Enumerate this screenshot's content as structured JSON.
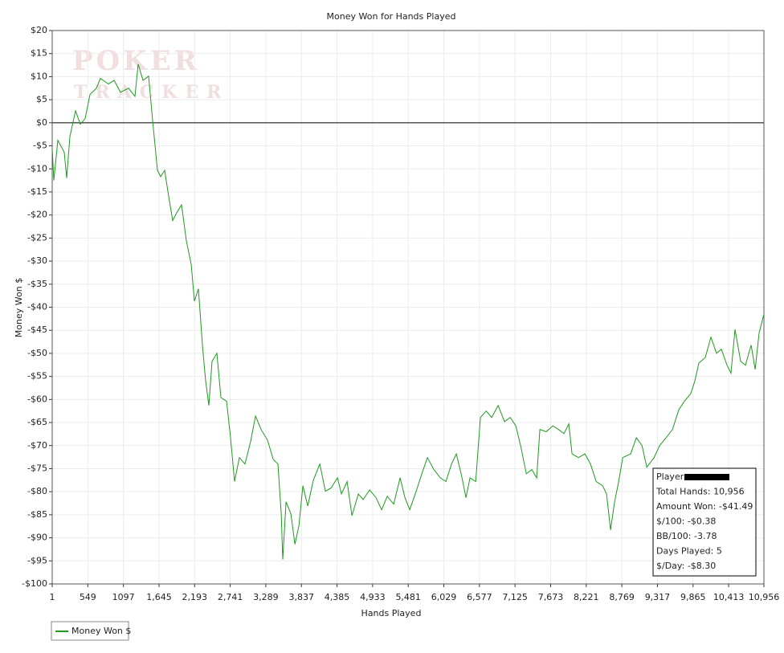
{
  "chart_data": {
    "type": "line",
    "title": "Money Won for Hands Played",
    "xlabel": "Hands Played",
    "ylabel": "Money Won $",
    "watermark": [
      "POKER",
      "TRACKER"
    ],
    "x": [
      1,
      26,
      88,
      186,
      224,
      273,
      360,
      434,
      508,
      582,
      681,
      743,
      867,
      953,
      1052,
      1176,
      1275,
      1324,
      1398,
      1485,
      1547,
      1621,
      1670,
      1732,
      1794,
      1856,
      1918,
      1992,
      2066,
      2141,
      2190,
      2251,
      2313,
      2363,
      2412,
      2462,
      2536,
      2598,
      2685,
      2746,
      2808,
      2882,
      2969,
      3055,
      3130,
      3216,
      3315,
      3402,
      3476,
      3526,
      3550,
      3600,
      3674,
      3736,
      3798,
      3860,
      3934,
      4021,
      4120,
      4206,
      4293,
      4392,
      4453,
      4540,
      4614,
      4713,
      4787,
      4886,
      4985,
      5072,
      5158,
      5257,
      5356,
      5430,
      5505,
      5603,
      5690,
      5776,
      5875,
      5974,
      6061,
      6147,
      6222,
      6296,
      6370,
      6432,
      6519,
      6593,
      6680,
      6766,
      6865,
      6964,
      7050,
      7137,
      7211,
      7298,
      7384,
      7458,
      7508,
      7607,
      7706,
      7792,
      7879,
      7953,
      8002,
      8101,
      8200,
      8287,
      8374,
      8473,
      8534,
      8596,
      8658,
      8720,
      8782,
      8905,
      8992,
      9079,
      9153,
      9264,
      9351,
      9450,
      9549,
      9646,
      9732,
      9831,
      9893,
      9955,
      10054,
      10140,
      10227,
      10301,
      10388,
      10449,
      10511,
      10598,
      10672,
      10759,
      10821,
      10882,
      10956
    ],
    "series": [
      {
        "name": "Money Won $",
        "color": "#1f9a1f",
        "values": [
          -5.6,
          -12.5,
          -3.8,
          -6.4,
          -12,
          -3,
          2.6,
          -0.3,
          0.9,
          6.1,
          7.5,
          9.6,
          8.4,
          9.2,
          6.6,
          7.5,
          5.7,
          12.7,
          9.2,
          10.1,
          0.5,
          -10.3,
          -11.7,
          -10.3,
          -16,
          -21.2,
          -19.5,
          -17.8,
          -25.6,
          -30.8,
          -38.7,
          -36,
          -48.2,
          -56,
          -61.3,
          -51.7,
          -50,
          -59.6,
          -60.4,
          -68.3,
          -77.8,
          -72.6,
          -74,
          -69.1,
          -63.6,
          -66.5,
          -68.8,
          -73,
          -74,
          -84.8,
          -94.7,
          -82.2,
          -84.8,
          -91.4,
          -87.4,
          -78.7,
          -83.1,
          -77.5,
          -74,
          -79.9,
          -79.2,
          -77,
          -80.5,
          -77.8,
          -85.2,
          -80.5,
          -81.7,
          -79.6,
          -81.3,
          -83.9,
          -81,
          -82.7,
          -77,
          -81.3,
          -83.9,
          -79.9,
          -76.1,
          -72.6,
          -75.2,
          -77,
          -77.8,
          -74,
          -71.8,
          -76.1,
          -81.3,
          -77,
          -77.8,
          -63.9,
          -62.5,
          -63.9,
          -61.3,
          -64.8,
          -63.9,
          -65.7,
          -70,
          -76.1,
          -75.2,
          -77,
          -66.5,
          -67,
          -65.7,
          -66.5,
          -67.4,
          -65.3,
          -71.8,
          -72.6,
          -71.8,
          -74,
          -77.8,
          -78.7,
          -80.5,
          -88.3,
          -82.2,
          -77.8,
          -72.6,
          -71.8,
          -68.3,
          -70,
          -74.7,
          -72.6,
          -70,
          -68.3,
          -66.5,
          -62.2,
          -60.4,
          -58.7,
          -56,
          -52.1,
          -50.9,
          -46.5,
          -50,
          -49.1,
          -52.6,
          -54.3,
          -44.8,
          -51.7,
          -52.6,
          -48.2,
          -53.5,
          -45.6,
          -41.49
        ]
      }
    ],
    "xlim": [
      1,
      10956
    ],
    "xticks": [
      1,
      549,
      1097,
      {
        "value": 1645,
        "label": "1,645"
      },
      {
        "value": 2193,
        "label": "2,193"
      },
      {
        "value": 2741,
        "label": "2,741"
      },
      {
        "value": 3289,
        "label": "3,289"
      },
      {
        "value": 3837,
        "label": "3,837"
      },
      {
        "value": 4385,
        "label": "4,385"
      },
      {
        "value": 4933,
        "label": "4,933"
      },
      {
        "value": 5481,
        "label": "5,481"
      },
      {
        "value": 6029,
        "label": "6,029"
      },
      {
        "value": 6577,
        "label": "6,577"
      },
      {
        "value": 7125,
        "label": "7,125"
      },
      {
        "value": 7673,
        "label": "7,673"
      },
      {
        "value": 8221,
        "label": "8,221"
      },
      {
        "value": 8769,
        "label": "8,769"
      },
      {
        "value": 9317,
        "label": "9,317"
      },
      {
        "value": 9865,
        "label": "9,865"
      },
      {
        "value": 10413,
        "label": "10,413"
      },
      {
        "value": 10956,
        "label": "10,956"
      }
    ],
    "ylim": [
      -100,
      20
    ],
    "yticks": [
      {
        "value": -100,
        "label": "-$100"
      },
      {
        "value": -95,
        "label": "-$95"
      },
      {
        "value": -90,
        "label": "-$90"
      },
      {
        "value": -85,
        "label": "-$85"
      },
      {
        "value": -80,
        "label": "-$80"
      },
      {
        "value": -75,
        "label": "-$75"
      },
      {
        "value": -70,
        "label": "-$70"
      },
      {
        "value": -65,
        "label": "-$65"
      },
      {
        "value": -60,
        "label": "-$60"
      },
      {
        "value": -55,
        "label": "-$55"
      },
      {
        "value": -50,
        "label": "-$50"
      },
      {
        "value": -45,
        "label": "-$45"
      },
      {
        "value": -40,
        "label": "-$40"
      },
      {
        "value": -35,
        "label": "-$35"
      },
      {
        "value": -30,
        "label": "-$30"
      },
      {
        "value": -25,
        "label": "-$25"
      },
      {
        "value": -20,
        "label": "-$20"
      },
      {
        "value": -15,
        "label": "-$15"
      },
      {
        "value": -10,
        "label": "-$10"
      },
      {
        "value": -5,
        "label": "-$5"
      },
      {
        "value": 0,
        "label": "$0"
      },
      {
        "value": 5,
        "label": "$5"
      },
      {
        "value": 10,
        "label": "$10"
      },
      {
        "value": 15,
        "label": "$15"
      },
      {
        "value": 20,
        "label": "$20"
      }
    ],
    "grid": true,
    "legend": "bottom-left",
    "stats_box": [
      "Player:",
      "Total Hands: 10,956",
      "Amount Won: -$41.49",
      "$/100: -$0.38",
      "BB/100: -3.78",
      "Days Played: 5",
      "$/Day: -$8.30"
    ]
  }
}
